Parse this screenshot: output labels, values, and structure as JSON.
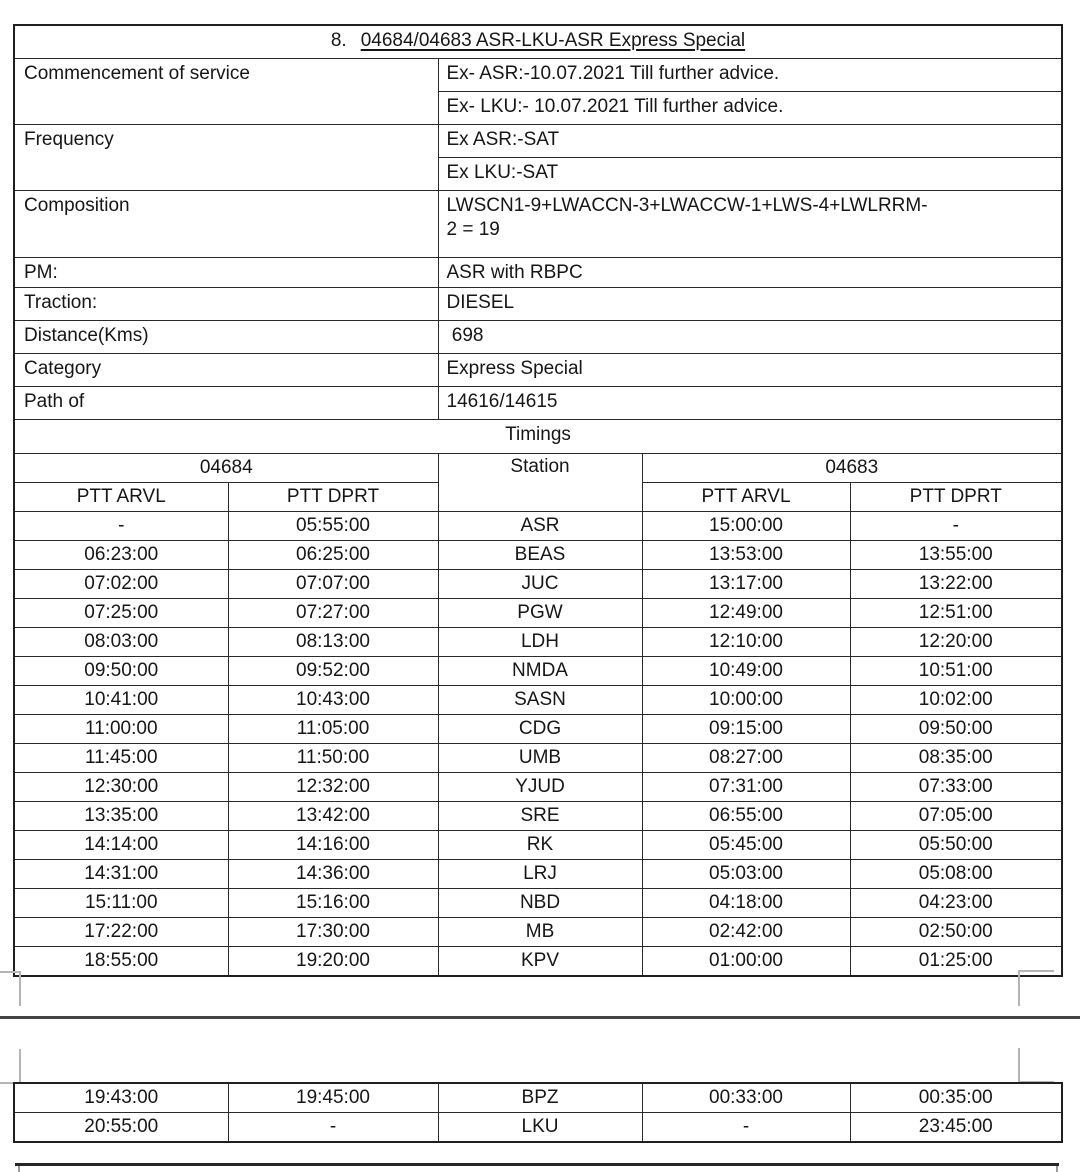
{
  "title": {
    "number": "8.",
    "text": "04684/04683 ASR-LKU-ASR Express Special"
  },
  "info_rows": [
    {
      "label": "Commencement of service",
      "values": [
        "Ex- ASR:-10.07.2021 Till further advice.",
        "Ex- LKU:- 10.07.2021 Till further advice."
      ]
    },
    {
      "label": "Frequency",
      "values": [
        "Ex ASR:-SAT",
        "Ex LKU:-SAT"
      ]
    },
    {
      "label": "Composition",
      "values": [
        "LWSCN1-9+LWACCN-3+LWACCW-1+LWS-4+LWLRRM-\n2 = 19"
      ]
    },
    {
      "label": "PM:",
      "values": [
        "ASR with RBPC"
      ]
    },
    {
      "label": "Traction:",
      "values": [
        "DIESEL"
      ]
    },
    {
      "label": "Distance(Kms)",
      "values": [
        " 698"
      ]
    },
    {
      "label": "Category",
      "values": [
        "Express Special"
      ]
    },
    {
      "label": "Path of",
      "values": [
        "14616/14615"
      ]
    }
  ],
  "timings": {
    "section_title": "Timings",
    "train_down": "04684",
    "train_up": "04683",
    "station_header": "Station",
    "col_headers": [
      "PTT ARVL",
      "PTT DPRT",
      "PTT ARVL",
      "PTT DPRT"
    ],
    "rows": [
      [
        "-",
        "05:55:00",
        "ASR",
        "15:00:00",
        "-"
      ],
      [
        "06:23:00",
        "06:25:00",
        "BEAS",
        "13:53:00",
        "13:55:00"
      ],
      [
        "07:02:00",
        "07:07:00",
        "JUC",
        "13:17:00",
        "13:22:00"
      ],
      [
        "07:25:00",
        "07:27:00",
        "PGW",
        "12:49:00",
        "12:51:00"
      ],
      [
        "08:03:00",
        "08:13:00",
        "LDH",
        "12:10:00",
        "12:20:00"
      ],
      [
        "09:50:00",
        "09:52:00",
        "NMDA",
        "10:49:00",
        "10:51:00"
      ],
      [
        "10:41:00",
        "10:43:00",
        "SASN",
        "10:00:00",
        "10:02:00"
      ],
      [
        "11:00:00",
        "11:05:00",
        "CDG",
        "09:15:00",
        "09:50:00"
      ],
      [
        "11:45:00",
        "11:50:00",
        "UMB",
        "08:27:00",
        "08:35:00"
      ],
      [
        "12:30:00",
        "12:32:00",
        "YJUD",
        "07:31:00",
        "07:33:00"
      ],
      [
        "13:35:00",
        "13:42:00",
        "SRE",
        "06:55:00",
        "07:05:00"
      ],
      [
        "14:14:00",
        "14:16:00",
        "RK",
        "05:45:00",
        "05:50:00"
      ],
      [
        "14:31:00",
        "14:36:00",
        "LRJ",
        "05:03:00",
        "05:08:00"
      ],
      [
        "15:11:00",
        "15:16:00",
        "NBD",
        "04:18:00",
        "04:23:00"
      ],
      [
        "17:22:00",
        "17:30:00",
        "MB",
        "02:42:00",
        "02:50:00"
      ],
      [
        "18:55:00",
        "19:20:00",
        "KPV",
        "01:00:00",
        "01:25:00"
      ]
    ],
    "continued_rows": [
      [
        "19:43:00",
        "19:45:00",
        "BPZ",
        "00:33:00",
        "00:35:00"
      ],
      [
        "20:55:00",
        "-",
        "LKU",
        "-",
        "23:45:00"
      ]
    ]
  },
  "colors": {
    "table_border": "#2a2a2a",
    "page_break_line": "#454545",
    "crop_mark": "#b5b5b5",
    "text": "#161616"
  }
}
